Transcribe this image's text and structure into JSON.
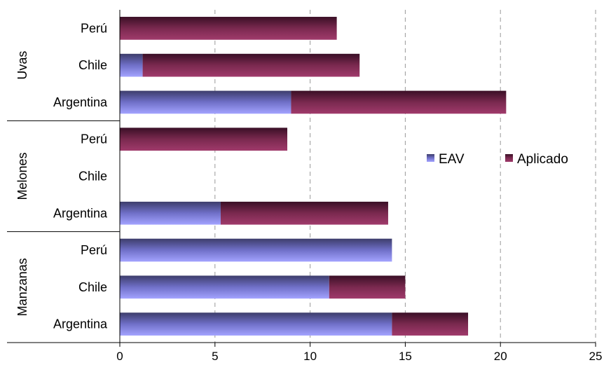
{
  "chart_data": {
    "type": "bar",
    "orientation": "horizontal",
    "stacked": true,
    "groups": [
      {
        "name": "Uvas",
        "categories": [
          "Perú",
          "Chile",
          "Argentina"
        ]
      },
      {
        "name": "Melones",
        "categories": [
          "Perú",
          "Chile",
          "Argentina"
        ]
      },
      {
        "name": "Manzanas",
        "categories": [
          "Perú",
          "Chile",
          "Argentina"
        ]
      }
    ],
    "series": [
      {
        "name": "EAV",
        "color": "#9999ff",
        "values": [
          [
            0,
            1.2,
            9.0
          ],
          [
            0,
            0,
            5.3
          ],
          [
            14.3,
            11.0,
            14.3
          ]
        ]
      },
      {
        "name": "Aplicado",
        "color": "#993366",
        "values": [
          [
            11.4,
            11.4,
            11.3
          ],
          [
            8.8,
            0,
            8.8
          ],
          [
            0,
            4.0,
            4.0
          ]
        ]
      }
    ],
    "xlim": [
      0,
      25
    ],
    "xticks": [
      "0",
      "5",
      "10",
      "15",
      "20",
      "25"
    ],
    "grid": "vertical dashed",
    "legend": "right"
  }
}
